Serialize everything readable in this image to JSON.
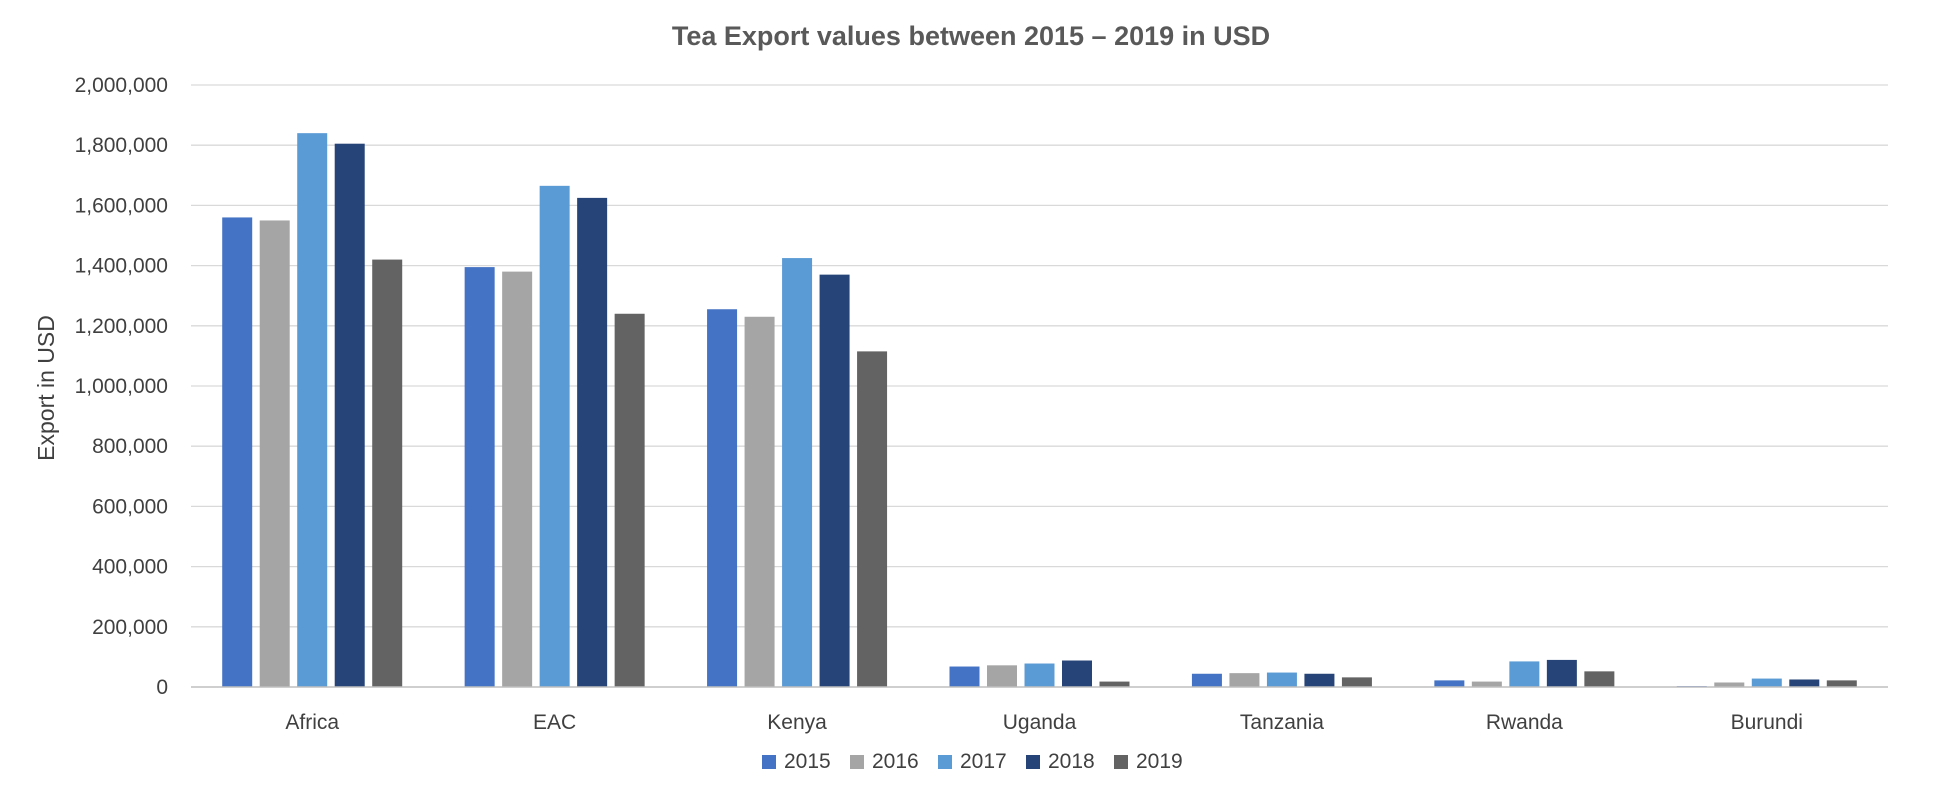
{
  "chart_data": {
    "type": "bar",
    "title": "Tea Export values between 2015 – 2019 in USD",
    "xlabel": "",
    "ylabel": "Export in USD",
    "categories": [
      "Africa",
      "EAC",
      "Kenya",
      "Uganda",
      "Tanzania",
      "Rwanda",
      "Burundi"
    ],
    "ylim": [
      0,
      2000000
    ],
    "y_ticks": [
      0,
      200000,
      400000,
      600000,
      800000,
      1000000,
      1200000,
      1400000,
      1600000,
      1800000,
      2000000
    ],
    "y_tick_labels": [
      "0",
      "200,000",
      "400,000",
      "600,000",
      "800,000",
      "1,000,000",
      "1,200,000",
      "1,400,000",
      "1,600,000",
      "1,800,000",
      "2,000,000"
    ],
    "grid": true,
    "legend_position": "bottom",
    "series": [
      {
        "name": "2015",
        "color": "#4472c4",
        "values": [
          1560000,
          1395000,
          1255000,
          68000,
          44000,
          22000,
          3000
        ]
      },
      {
        "name": "2016",
        "color": "#a5a5a5",
        "values": [
          1550000,
          1380000,
          1230000,
          72000,
          46000,
          18000,
          15000
        ]
      },
      {
        "name": "2017",
        "color": "#5b9bd5",
        "values": [
          1840000,
          1665000,
          1425000,
          78000,
          48000,
          85000,
          28000
        ]
      },
      {
        "name": "2018",
        "color": "#264478",
        "values": [
          1805000,
          1625000,
          1370000,
          88000,
          44000,
          90000,
          25000
        ]
      },
      {
        "name": "2019",
        "color": "#636363",
        "values": [
          1420000,
          1240000,
          1115000,
          18000,
          32000,
          52000,
          22000
        ]
      }
    ]
  }
}
